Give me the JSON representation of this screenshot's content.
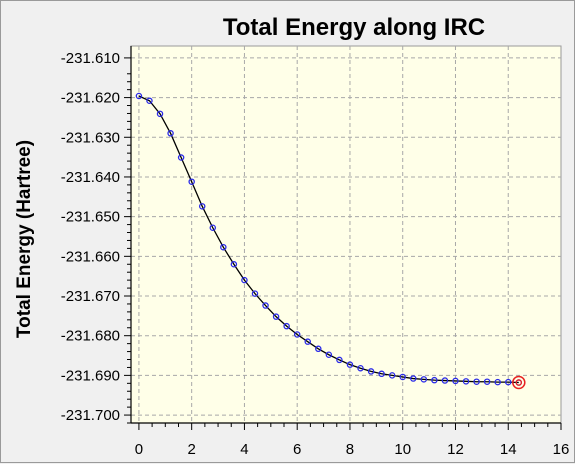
{
  "chart_data": {
    "type": "line",
    "title": "Total Energy along IRC",
    "xlabel": "",
    "ylabel": "Total Energy (Hartree)",
    "xlim": [
      -0.3,
      16.0
    ],
    "ylim": [
      -231.702,
      -231.607
    ],
    "x_ticks": [
      0,
      2,
      4,
      6,
      8,
      10,
      12,
      14,
      16
    ],
    "y_ticks": [
      -231.61,
      -231.62,
      -231.63,
      -231.64,
      -231.65,
      -231.66,
      -231.67,
      -231.68,
      -231.69,
      -231.7
    ],
    "x_tick_labels": [
      "0",
      "2",
      "4",
      "6",
      "8",
      "10",
      "12",
      "14",
      "16"
    ],
    "y_tick_labels": [
      "-231.610",
      "-231.620",
      "-231.630",
      "-231.640",
      "-231.650",
      "-231.660",
      "-231.670",
      "-231.680",
      "-231.690",
      "-231.700"
    ],
    "grid": true,
    "series": [
      {
        "x": [
          0,
          0.4,
          0.8,
          1.2,
          1.6,
          2.0,
          2.4,
          2.8,
          3.2,
          3.6,
          4.0,
          4.4,
          4.8,
          5.2,
          5.6,
          6.0,
          6.4,
          6.8,
          7.2,
          7.6,
          8.0,
          8.4,
          8.8,
          9.2,
          9.6,
          10.0,
          10.4,
          10.8,
          11.2,
          11.6,
          12.0,
          12.4,
          12.8,
          13.2,
          13.6,
          14.0,
          14.4
        ],
        "values": [
          -231.6196,
          -231.6208,
          -231.6241,
          -231.629,
          -231.6351,
          -231.6412,
          -231.6474,
          -231.6528,
          -231.6577,
          -231.662,
          -231.666,
          -231.6694,
          -231.6724,
          -231.6752,
          -231.6776,
          -231.6797,
          -231.6815,
          -231.6833,
          -231.6848,
          -231.6861,
          -231.6873,
          -231.6882,
          -231.689,
          -231.6896,
          -231.69,
          -231.6904,
          -231.6908,
          -231.691,
          -231.6912,
          -231.6913,
          -231.6914,
          -231.6915,
          -231.6916,
          -231.6916,
          -231.6917,
          -231.6917,
          -231.6918
        ]
      }
    ],
    "colors": {
      "line": "#000000",
      "marker": "#2a2ae8",
      "highlight": "#e82020",
      "plot_bg": "#ffffe8",
      "grid": "#a8a8a8",
      "window_bg": "#f0f0f0"
    },
    "highlighted_point_index": 36
  }
}
